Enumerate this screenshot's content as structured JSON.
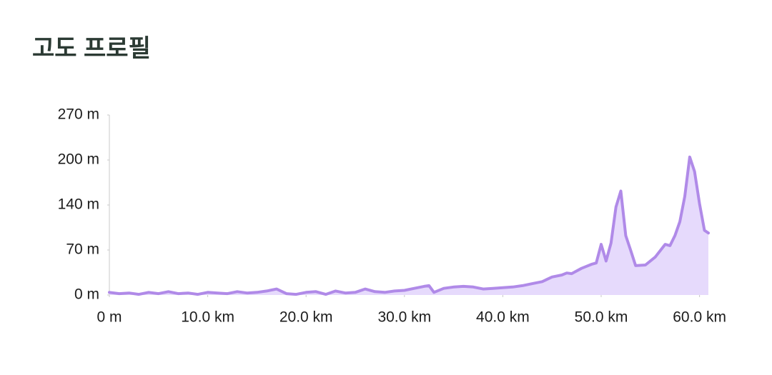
{
  "chart_data": {
    "type": "area",
    "title": "고도 프로필",
    "color": "#b08ae8",
    "fill": "#e6dafc",
    "x": [
      0,
      1,
      2,
      3,
      4,
      5,
      6,
      7,
      8,
      9,
      10,
      11,
      12,
      13,
      14,
      15,
      16,
      17,
      18,
      19,
      20,
      21,
      22,
      23,
      24,
      25,
      26,
      27,
      28,
      29,
      30,
      31,
      32,
      32.5,
      33,
      34,
      35,
      36,
      37,
      38,
      39,
      40,
      41,
      42,
      43,
      44,
      45,
      46,
      46.5,
      47,
      48,
      49,
      49.5,
      50,
      50.5,
      51,
      51.5,
      52,
      52.5,
      53,
      53.5,
      54.5,
      55.5,
      56.5,
      57,
      57.5,
      58,
      58.5,
      59,
      59.5,
      60,
      60.5,
      60.9
    ],
    "values": [
      4,
      2,
      3,
      1,
      4,
      2,
      5,
      2,
      3,
      1,
      4,
      3,
      2,
      5,
      3,
      4,
      6,
      9,
      2,
      1,
      4,
      5,
      1,
      6,
      3,
      4,
      9,
      5,
      4,
      6,
      7,
      10,
      13,
      14,
      4,
      10,
      12,
      13,
      12,
      9,
      10,
      11,
      12,
      14,
      17,
      20,
      27,
      30,
      33,
      32,
      40,
      46,
      48,
      76,
      51,
      78,
      132,
      156,
      89,
      67,
      44,
      45,
      57,
      76,
      74,
      89,
      110,
      148,
      207,
      185,
      137,
      97,
      93
    ],
    "xlim": [
      0,
      60.9
    ],
    "xticks": [
      {
        "value": 0,
        "label": "0 m"
      },
      {
        "value": 10,
        "label": "10.0 km"
      },
      {
        "value": 20,
        "label": "20.0 km"
      },
      {
        "value": 30,
        "label": "30.0 km"
      },
      {
        "value": 40,
        "label": "40.0 km"
      },
      {
        "value": 50,
        "label": "50.0 km"
      },
      {
        "value": 60,
        "label": "60.0 km"
      }
    ],
    "ylim": [
      0,
      270
    ],
    "yticks": [
      {
        "value": 0,
        "label": "0 m"
      },
      {
        "value": 67.5,
        "label": "70 m"
      },
      {
        "value": 135,
        "label": "140 m"
      },
      {
        "value": 202.5,
        "label": "200 m"
      },
      {
        "value": 270,
        "label": "270 m"
      }
    ]
  }
}
